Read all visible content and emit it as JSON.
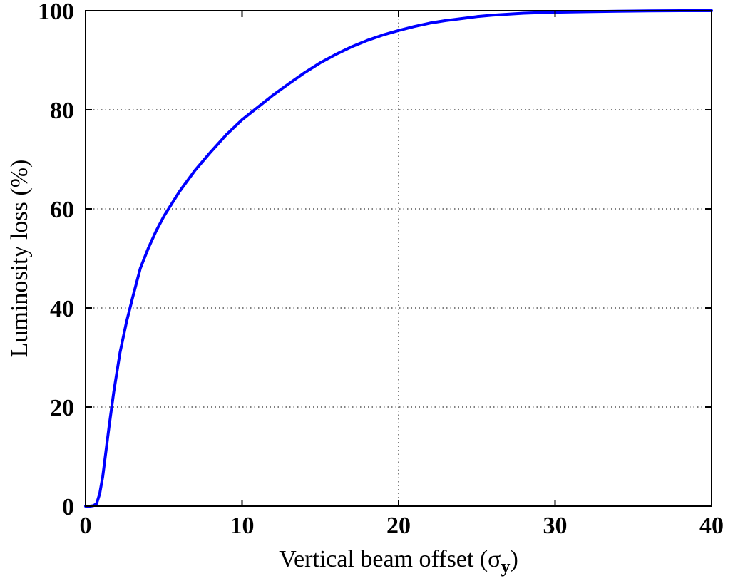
{
  "chart_data": {
    "type": "line",
    "xlabel_main": "Vertical beam offset (",
    "xlabel_symbol": "σ",
    "xlabel_subscript": "y",
    "xlabel_close": ")",
    "ylabel": "Luminosity loss  (%)",
    "xlim": [
      0,
      40
    ],
    "ylim": [
      0,
      100
    ],
    "x_ticks": [
      0,
      10,
      20,
      30,
      40
    ],
    "x_tick_labels": [
      "0",
      "10",
      "20",
      "30",
      "40"
    ],
    "y_ticks": [
      0,
      20,
      40,
      60,
      80,
      100
    ],
    "y_tick_labels": [
      "0",
      "20",
      "40",
      "60",
      "80",
      "100"
    ],
    "grid": true,
    "line_color": "#0000ff",
    "series": [
      {
        "x": [
          0,
          0.3,
          0.5,
          0.7,
          0.9,
          1.1,
          1.3,
          1.5,
          1.8,
          2.2,
          2.6,
          3.0,
          3.5,
          4.0,
          4.5,
          5.0,
          5.5,
          6.0,
          7.0,
          8.0,
          9.0,
          10.0,
          11.0,
          12.0,
          13.0,
          14.0,
          15.0,
          16.0,
          17.0,
          18.0,
          19.0,
          20.0,
          21.0,
          22.0,
          23.0,
          24.0,
          25.0,
          26.0,
          27.0,
          28.0,
          29.0,
          30.0,
          32.0,
          34.0,
          36.0,
          38.0,
          40.0
        ],
        "y": [
          0,
          0,
          0.1,
          0.5,
          2.5,
          6,
          11,
          16,
          23,
          31,
          37,
          42,
          48,
          52,
          55.5,
          58.5,
          61,
          63.5,
          67.8,
          71.5,
          75,
          78,
          80.5,
          83,
          85.3,
          87.5,
          89.5,
          91.2,
          92.7,
          94,
          95.1,
          96,
          96.8,
          97.5,
          98,
          98.4,
          98.8,
          99.1,
          99.3,
          99.5,
          99.6,
          99.7,
          99.8,
          99.9,
          99.95,
          100,
          100
        ]
      }
    ]
  }
}
